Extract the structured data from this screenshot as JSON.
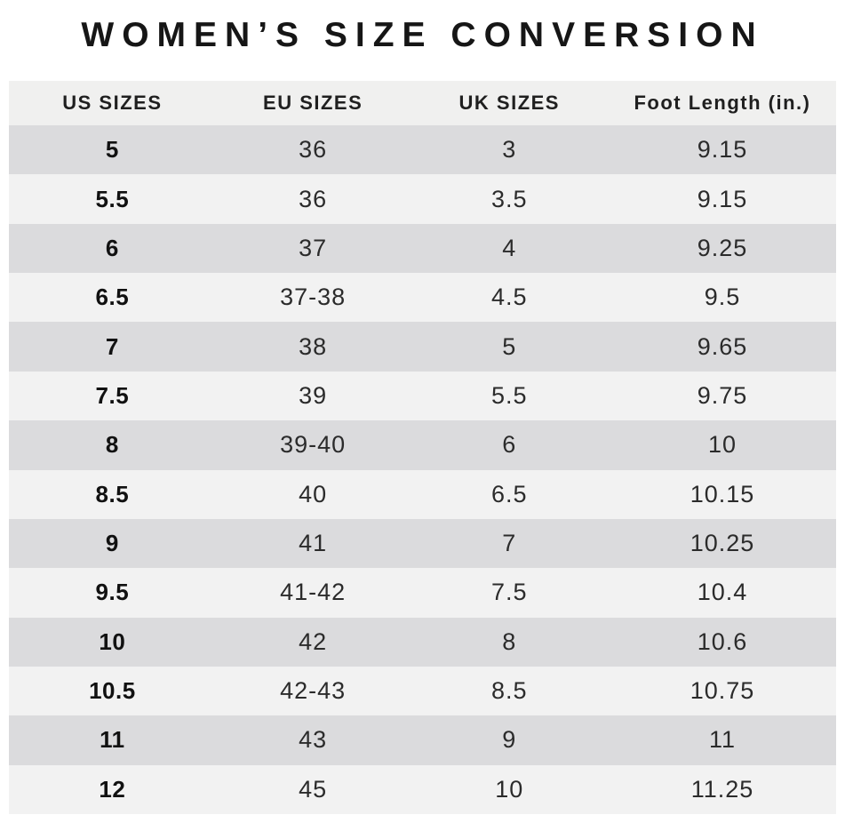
{
  "title": "WOMEN’S SIZE CONVERSION",
  "chart_data": {
    "type": "table",
    "title": "WOMEN’S SIZE CONVERSION",
    "columns": [
      "US SIZES",
      "EU SIZES",
      "UK SIZES",
      "Foot Length (in.)"
    ],
    "rows": [
      [
        "5",
        "36",
        "3",
        "9.15"
      ],
      [
        "5.5",
        "36",
        "3.5",
        "9.15"
      ],
      [
        "6",
        "37",
        "4",
        "9.25"
      ],
      [
        "6.5",
        "37-38",
        "4.5",
        "9.5"
      ],
      [
        "7",
        "38",
        "5",
        "9.65"
      ],
      [
        "7.5",
        "39",
        "5.5",
        "9.75"
      ],
      [
        "8",
        "39-40",
        "6",
        "10"
      ],
      [
        "8.5",
        "40",
        "6.5",
        "10.15"
      ],
      [
        "9",
        "41",
        "7",
        "10.25"
      ],
      [
        "9.5",
        "41-42",
        "7.5",
        "10.4"
      ],
      [
        "10",
        "42",
        "8",
        "10.6"
      ],
      [
        "10.5",
        "42-43",
        "8.5",
        "10.75"
      ],
      [
        "11",
        "43",
        "9",
        "11"
      ],
      [
        "12",
        "45",
        "10",
        "11.25"
      ]
    ],
    "layout": {
      "row_striping": "alternating gray/light starting gray",
      "legend": "none",
      "grid": "none"
    }
  },
  "colors": {
    "title_text": "#161616",
    "header_text": "#1f1f1f",
    "header_bg": "#f0f0ef",
    "row_gray": "#dbdbdd",
    "row_light": "#f2f2f2",
    "cell_text": "#2b2b2b",
    "us_text": "#111111",
    "page_bg": "#ffffff"
  }
}
